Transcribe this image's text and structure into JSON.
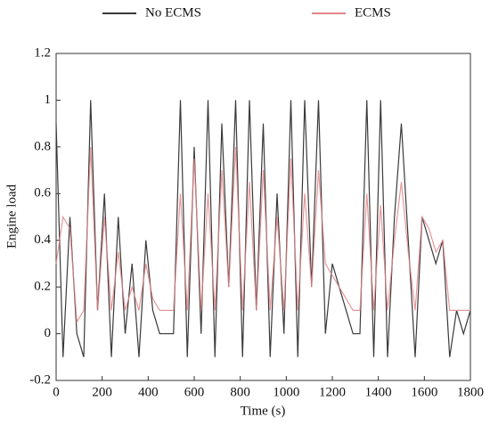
{
  "chart_data": {
    "type": "line",
    "x_label": "Time (s)",
    "y_label": "Engine load",
    "x": [
      0,
      30,
      60,
      90,
      120,
      150,
      180,
      210,
      240,
      270,
      300,
      330,
      360,
      390,
      420,
      450,
      480,
      510,
      540,
      570,
      600,
      630,
      660,
      690,
      720,
      750,
      780,
      810,
      840,
      870,
      900,
      930,
      960,
      990,
      1020,
      1050,
      1080,
      1110,
      1140,
      1170,
      1200,
      1230,
      1260,
      1290,
      1320,
      1350,
      1380,
      1410,
      1440,
      1470,
      1500,
      1530,
      1560,
      1590,
      1620,
      1650,
      1680,
      1710,
      1740,
      1770,
      1800
    ],
    "series": [
      {
        "name": "No ECMS",
        "color": "#3a3a3a",
        "values": [
          0.9,
          -0.1,
          0.5,
          0,
          -0.1,
          1,
          0.1,
          0.6,
          -0.1,
          0.5,
          0,
          0.3,
          -0.1,
          0.4,
          0.1,
          0,
          0,
          0,
          1,
          -0.1,
          0.8,
          0,
          1,
          -0.1,
          0.9,
          0.2,
          1,
          -0.1,
          1,
          0.1,
          0.9,
          -0.1,
          0.6,
          0,
          1,
          -0.1,
          1,
          0.2,
          1,
          0,
          0.3,
          0.2,
          0.1,
          0,
          0,
          1,
          -0.1,
          1,
          -0.1,
          0.5,
          0.9,
          0.4,
          -0.1,
          0.5,
          0.4,
          0.3,
          0.4,
          -0.1,
          0.1,
          0,
          0.1
        ]
      },
      {
        "name": "ECMS",
        "color": "#e0868a",
        "values": [
          0.3,
          0.5,
          0.45,
          0.05,
          0.1,
          0.8,
          0.1,
          0.5,
          0.1,
          0.35,
          0.1,
          0.2,
          0.1,
          0.3,
          0.15,
          0.1,
          0.1,
          0.1,
          0.6,
          0.1,
          0.75,
          0.1,
          0.6,
          0.1,
          0.7,
          0.2,
          0.8,
          0.1,
          0.65,
          0.1,
          0.7,
          0.1,
          0.5,
          0.1,
          0.75,
          0.1,
          0.6,
          0.2,
          0.7,
          0.3,
          0.25,
          0.2,
          0.15,
          0.1,
          0.1,
          0.6,
          0.1,
          0.55,
          0.1,
          0.4,
          0.65,
          0.35,
          0.1,
          0.5,
          0.45,
          0.35,
          0.4,
          0.1,
          0.1,
          0.1,
          0.1
        ]
      }
    ],
    "xlim": [
      0,
      1800
    ],
    "xticks": [
      0,
      200,
      400,
      600,
      800,
      1000,
      1200,
      1400,
      1600,
      1800
    ],
    "ylim": [
      -0.2,
      1.2
    ],
    "yticks": [
      -0.2,
      0,
      0.2,
      0.4,
      0.6,
      0.8,
      1,
      1.2
    ],
    "legend": "top"
  }
}
